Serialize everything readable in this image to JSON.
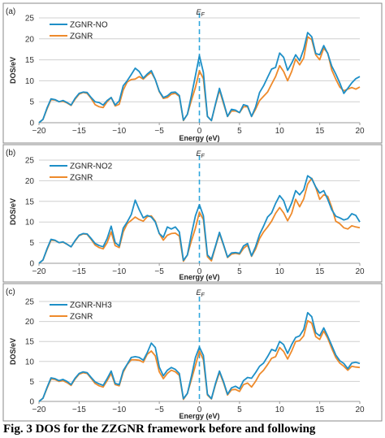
{
  "figure": {
    "caption": "Fig. 3 DOS for the ZZGNR framework before and following"
  },
  "colors": {
    "series_primary": "#1e8fc7",
    "series_zgnr": "#ee8a2b",
    "fermi_line": "#2fa7dd",
    "grid": "#d0d0d0",
    "frame": "#888888"
  },
  "chart_data": [
    {
      "type": "line",
      "panel_label": "(a)",
      "fermi_label": "E_F",
      "xlabel": "Energy (eV)",
      "ylabel": "DOS/eV",
      "xlim": [
        -20,
        20
      ],
      "ylim": [
        0,
        25
      ],
      "x_ticks": [
        -20,
        -15,
        -10,
        -5,
        0,
        5,
        10,
        15,
        20
      ],
      "y_ticks": [
        0,
        5,
        10,
        15,
        20,
        25
      ],
      "grid": true,
      "legend_position": "top-left",
      "x": [
        -20,
        -19.5,
        -19,
        -18.5,
        -18,
        -17.5,
        -17,
        -16.5,
        -16,
        -15.5,
        -15,
        -14.5,
        -14,
        -13.5,
        -13,
        -12.5,
        -12,
        -11.5,
        -11,
        -10.5,
        -10,
        -9.5,
        -9,
        -8.5,
        -8,
        -7.5,
        -7,
        -6.5,
        -6,
        -5.5,
        -5,
        -4.5,
        -4,
        -3.5,
        -3,
        -2.5,
        -2,
        -1.5,
        -1,
        -0.5,
        0,
        0.5,
        1,
        1.5,
        2,
        2.5,
        3,
        3.5,
        4,
        4.5,
        5,
        5.5,
        6,
        6.5,
        7,
        7.5,
        8,
        8.5,
        9,
        9.5,
        10,
        10.5,
        11,
        11.5,
        12,
        12.5,
        13,
        13.5,
        14,
        14.5,
        15,
        15.5,
        16,
        16.5,
        17,
        17.5,
        18,
        18.5,
        19,
        19.5,
        20
      ],
      "series": [
        {
          "name": "ZGNR-NO",
          "values": [
            0,
            0.8,
            3.5,
            5.7,
            5.5,
            5,
            5.3,
            4.8,
            4.2,
            5.8,
            7,
            7.3,
            7.2,
            6,
            5,
            4.8,
            4.2,
            5.3,
            6,
            4.2,
            5.2,
            8.8,
            10,
            11.5,
            13,
            12.2,
            10.6,
            11.6,
            12.4,
            10.3,
            7.5,
            6,
            6.4,
            7.2,
            7.3,
            6.5,
            0.6,
            2,
            6.4,
            11.2,
            16,
            12,
            1.5,
            0.5,
            4.5,
            8.2,
            5,
            1.5,
            3.2,
            3,
            2.4,
            4.3,
            4,
            1.5,
            3.7,
            7.2,
            8.8,
            10.8,
            12.8,
            13.2,
            16.6,
            15.6,
            12.5,
            14.2,
            16.2,
            14.8,
            17.5,
            21.5,
            20.5,
            16.5,
            16.2,
            18.4,
            16.5,
            13.5,
            11.6,
            9.5,
            7,
            8.2,
            9.5,
            10.5,
            11
          ]
        },
        {
          "name": "ZGNR",
          "values": [
            0,
            0.8,
            3.3,
            5.5,
            5.4,
            5,
            5.1,
            4.7,
            4.1,
            5.6,
            6.8,
            7.2,
            7,
            5.8,
            4.3,
            3.8,
            3.6,
            5,
            6,
            4,
            4.4,
            7.8,
            9.7,
            10.3,
            10.4,
            11,
            10.4,
            11.3,
            12,
            10.3,
            7.4,
            5.8,
            6,
            6.8,
            7,
            6.3,
            0.5,
            2,
            5.3,
            8.4,
            12.4,
            10.5,
            1.5,
            0.5,
            4.3,
            7.8,
            4.6,
            1.5,
            2.8,
            2.8,
            2.4,
            3.8,
            3.8,
            1.5,
            3.2,
            5.3,
            6.3,
            7.3,
            9.2,
            11,
            13.6,
            12.2,
            10,
            12.2,
            15.2,
            13.8,
            15.4,
            20.5,
            19.8,
            16.2,
            15,
            17.8,
            16.6,
            12.6,
            10.4,
            8.5,
            7.6,
            8,
            8.4,
            8,
            8.5
          ]
        }
      ]
    },
    {
      "type": "line",
      "panel_label": "(b)",
      "fermi_label": "E_F",
      "xlabel": "Energy (eV)",
      "ylabel": "DOS/eV",
      "xlim": [
        -20,
        20
      ],
      "ylim": [
        0,
        25
      ],
      "x_ticks": [
        -20,
        -15,
        -10,
        -5,
        0,
        5,
        10,
        15,
        20
      ],
      "y_ticks": [
        0,
        5,
        10,
        15,
        20,
        25
      ],
      "grid": true,
      "legend_position": "top-left",
      "x": [
        -20,
        -19.5,
        -19,
        -18.5,
        -18,
        -17.5,
        -17,
        -16.5,
        -16,
        -15.5,
        -15,
        -14.5,
        -14,
        -13.5,
        -13,
        -12.5,
        -12,
        -11.5,
        -11,
        -10.5,
        -10,
        -9.5,
        -9,
        -8.5,
        -8,
        -7.5,
        -7,
        -6.5,
        -6,
        -5.5,
        -5,
        -4.5,
        -4,
        -3.5,
        -3,
        -2.5,
        -2,
        -1.5,
        -1,
        -0.5,
        0,
        0.5,
        1,
        1.5,
        2,
        2.5,
        3,
        3.5,
        4,
        4.5,
        5,
        5.5,
        6,
        6.5,
        7,
        7.5,
        8,
        8.5,
        9,
        9.5,
        10,
        10.5,
        11,
        11.5,
        12,
        12.5,
        13,
        13.5,
        14,
        14.5,
        15,
        15.5,
        16,
        16.5,
        17,
        17.5,
        18,
        18.5,
        19,
        19.5,
        20
      ],
      "series": [
        {
          "name": "ZGNR-NO2",
          "values": [
            0,
            0.8,
            3.5,
            5.8,
            5.6,
            5,
            5.2,
            4.6,
            4,
            5.5,
            6.8,
            7.2,
            7.1,
            6,
            4.8,
            4.3,
            4,
            6,
            9,
            5,
            4.2,
            8.5,
            10,
            11.8,
            15.3,
            13,
            11,
            11.6,
            11.2,
            10,
            7.2,
            6.3,
            8.8,
            8.3,
            8.8,
            7.6,
            0.7,
            2,
            7,
            11.5,
            14.2,
            11.5,
            2,
            1,
            4.2,
            7.5,
            4.6,
            1.5,
            2.5,
            2.6,
            2.4,
            4.2,
            4.8,
            1.8,
            4,
            7,
            9,
            11.2,
            12.2,
            14.5,
            16.4,
            15.2,
            12.4,
            14.6,
            17.6,
            16.6,
            17.8,
            21.2,
            20.5,
            18.5,
            17,
            17.6,
            15.5,
            13,
            11.4,
            11,
            10.5,
            10.8,
            12,
            11.6,
            10
          ]
        },
        {
          "name": "ZGNR",
          "values": [
            0,
            0.8,
            3.3,
            5.6,
            5.5,
            5,
            5.1,
            4.6,
            4,
            5.4,
            6.7,
            7.1,
            7,
            5.8,
            4.4,
            3.8,
            3.5,
            5,
            7.6,
            4.3,
            3.8,
            7.6,
            9.6,
            10.4,
            11.2,
            10.6,
            10.2,
            11.3,
            11.5,
            10.2,
            7.2,
            5.6,
            6.8,
            7.2,
            7.3,
            6.6,
            0.5,
            2,
            5.4,
            8.5,
            12.4,
            10.6,
            1.6,
            0.6,
            4,
            7.2,
            4.4,
            1.4,
            2.2,
            2.4,
            2.2,
            3.6,
            4.4,
            1.7,
            3.4,
            6,
            7.6,
            8.8,
            10.2,
            12.1,
            13.5,
            12.2,
            10.3,
            12.1,
            15.5,
            13.7,
            15.6,
            19.2,
            20.6,
            18.4,
            15.5,
            16.6,
            16.2,
            13.6,
            10.2,
            9.6,
            8.6,
            8.3,
            9.1,
            8.8,
            8.6
          ]
        }
      ]
    },
    {
      "type": "line",
      "panel_label": "(c)",
      "fermi_label": "E_F",
      "xlabel": "Energy (eV)",
      "ylabel": "DOS/eV",
      "xlim": [
        -20,
        20
      ],
      "ylim": [
        0,
        25
      ],
      "x_ticks": [
        -20,
        -15,
        -10,
        -5,
        0,
        5,
        10,
        15,
        20
      ],
      "y_ticks": [
        0,
        5,
        10,
        15,
        20,
        25
      ],
      "grid": true,
      "legend_position": "top-left",
      "x": [
        -20,
        -19.5,
        -19,
        -18.5,
        -18,
        -17.5,
        -17,
        -16.5,
        -16,
        -15.5,
        -15,
        -14.5,
        -14,
        -13.5,
        -13,
        -12.5,
        -12,
        -11.5,
        -11,
        -10.5,
        -10,
        -9.5,
        -9,
        -8.5,
        -8,
        -7.5,
        -7,
        -6.5,
        -6,
        -5.5,
        -5,
        -4.5,
        -4,
        -3.5,
        -3,
        -2.5,
        -2,
        -1.5,
        -1,
        -0.5,
        0,
        0.5,
        1,
        1.5,
        2,
        2.5,
        3,
        3.5,
        4,
        4.5,
        5,
        5.5,
        6,
        6.5,
        7,
        7.5,
        8,
        8.5,
        9,
        9.5,
        10,
        10.5,
        11,
        11.5,
        12,
        12.5,
        13,
        13.5,
        14,
        14.5,
        15,
        15.5,
        16,
        16.5,
        17,
        17.5,
        18,
        18.5,
        19,
        19.5,
        20
      ],
      "series": [
        {
          "name": "ZGNR-NH3",
          "values": [
            0,
            0.8,
            3.5,
            5.9,
            5.7,
            5.2,
            5.5,
            5,
            4.2,
            5.8,
            7,
            7.4,
            7.2,
            6,
            4.9,
            4.4,
            4,
            5.7,
            7.6,
            4.5,
            4.2,
            7.7,
            9.3,
            11,
            11.2,
            11,
            10.3,
            12.2,
            14.6,
            13.5,
            8.6,
            6.4,
            7.8,
            8.5,
            8,
            7,
            0.7,
            2,
            6.2,
            11,
            13.6,
            11.5,
            1.8,
            0.7,
            4.5,
            7.6,
            5,
            1.8,
            3.4,
            3.8,
            3.2,
            5.2,
            6,
            5.8,
            7.2,
            8.8,
            9.6,
            11.2,
            13,
            12.6,
            15,
            14.2,
            12,
            14.2,
            16,
            16.4,
            18,
            22.2,
            21.2,
            17.2,
            16.4,
            18.4,
            16.3,
            14,
            11.6,
            10.2,
            9.5,
            8.2,
            9.6,
            9.8,
            9.5
          ]
        },
        {
          "name": "ZGNR",
          "values": [
            0,
            0.8,
            3.3,
            5.6,
            5.5,
            5,
            5.2,
            4.7,
            4,
            5.6,
            6.8,
            7.2,
            7,
            5.8,
            4.5,
            3.9,
            3.6,
            5.2,
            7,
            4.2,
            3.9,
            7.3,
            9.2,
            10.4,
            10.4,
            10.3,
            9.8,
            11.8,
            12.6,
            11.4,
            7.4,
            5.7,
            7,
            7.8,
            7.4,
            6.5,
            0.5,
            2,
            5.4,
            9,
            12.6,
            10.4,
            1.6,
            0.6,
            4.2,
            7.3,
            4.7,
            1.6,
            2.9,
            3,
            2.5,
            4.2,
            4.6,
            3.6,
            5,
            6.8,
            7.8,
            9.2,
            10.8,
            11.2,
            13.5,
            12.5,
            10.6,
            12.6,
            15,
            15.2,
            16.4,
            20.2,
            19.6,
            16.2,
            15.5,
            17.6,
            15.8,
            13.3,
            11,
            9.6,
            8.8,
            7.8,
            8.8,
            8.6,
            8.5
          ]
        }
      ]
    }
  ]
}
